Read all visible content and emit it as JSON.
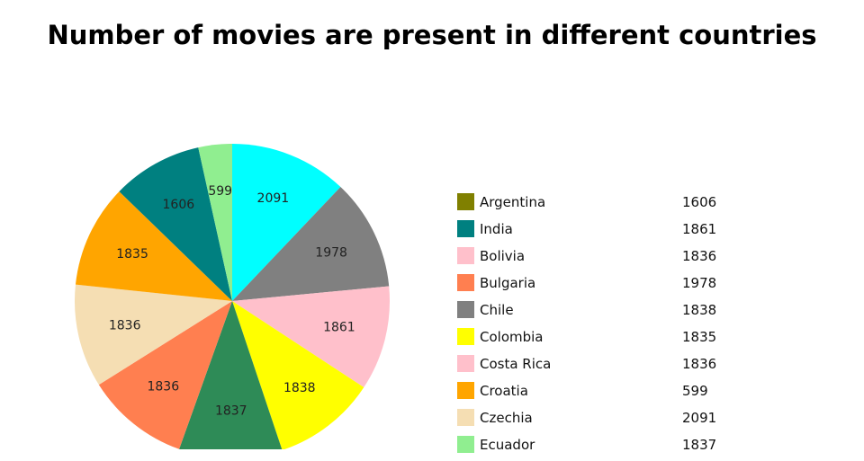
{
  "chart_data": {
    "type": "pie",
    "title": "Number of movies are present in different countries",
    "legend_position": "right",
    "slices": [
      {
        "value": 2091,
        "color": "#00ffff"
      },
      {
        "value": 1978,
        "color": "#808080"
      },
      {
        "value": 1861,
        "color": "#ffc0cb"
      },
      {
        "value": 1838,
        "color": "#ffff00"
      },
      {
        "value": 1837,
        "color": "#2e8b57"
      },
      {
        "value": 1836,
        "color": "#ff7f50"
      },
      {
        "value": 1836,
        "color": "#f5deb3"
      },
      {
        "value": 1835,
        "color": "#ffa500"
      },
      {
        "value": 1606,
        "color": "#008080"
      },
      {
        "value": 599,
        "color": "#90ee90"
      }
    ],
    "legend": [
      {
        "name": "Argentina",
        "value": "1606",
        "color": "#808000"
      },
      {
        "name": "India",
        "value": "1861",
        "color": "#008080"
      },
      {
        "name": "Bolivia",
        "value": "1836",
        "color": "#ffc0cb"
      },
      {
        "name": "Bulgaria",
        "value": "1978",
        "color": "#ff7f50"
      },
      {
        "name": "Chile",
        "value": "1838",
        "color": "#808080"
      },
      {
        "name": "Colombia",
        "value": "1835",
        "color": "#ffff00"
      },
      {
        "name": "Costa Rica",
        "value": "1836",
        "color": "#ffc0cb"
      },
      {
        "name": "Croatia",
        "value": "599",
        "color": "#ffa500"
      },
      {
        "name": "Czechia",
        "value": "2091",
        "color": "#f5deb3"
      },
      {
        "name": "Ecuador",
        "value": "1837",
        "color": "#90ee90"
      }
    ]
  }
}
